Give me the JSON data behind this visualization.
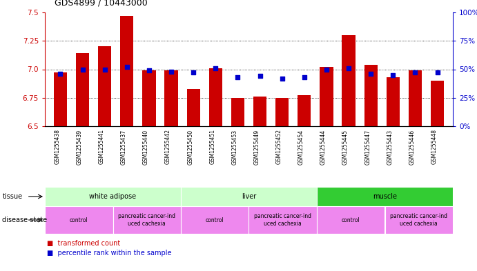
{
  "title": "GDS4899 / 10443000",
  "samples": [
    "GSM1255438",
    "GSM1255439",
    "GSM1255441",
    "GSM1255437",
    "GSM1255440",
    "GSM1255442",
    "GSM1255450",
    "GSM1255451",
    "GSM1255453",
    "GSM1255449",
    "GSM1255452",
    "GSM1255454",
    "GSM1255444",
    "GSM1255445",
    "GSM1255447",
    "GSM1255443",
    "GSM1255446",
    "GSM1255448"
  ],
  "transformed_count": [
    6.97,
    7.14,
    7.2,
    7.47,
    6.99,
    6.99,
    6.83,
    7.01,
    6.75,
    6.76,
    6.75,
    6.77,
    7.02,
    7.3,
    7.04,
    6.93,
    6.99,
    6.9
  ],
  "percentile_rank": [
    46,
    50,
    50,
    52,
    49,
    48,
    47,
    51,
    43,
    44,
    42,
    43,
    50,
    51,
    46,
    45,
    47,
    47
  ],
  "ylim_left": [
    6.5,
    7.5
  ],
  "ylim_right": [
    0,
    100
  ],
  "yticks_left": [
    6.5,
    6.75,
    7.0,
    7.25,
    7.5
  ],
  "yticks_right": [
    0,
    25,
    50,
    75,
    100
  ],
  "bar_color": "#cc0000",
  "dot_color": "#0000cc",
  "tissue_groups": [
    {
      "label": "white adipose",
      "start": 0,
      "end": 5,
      "color": "#aaffaa"
    },
    {
      "label": "liver",
      "start": 6,
      "end": 11,
      "color": "#aaffaa"
    },
    {
      "label": "muscle",
      "start": 12,
      "end": 17,
      "color": "#33cc33"
    }
  ],
  "disease_groups": [
    {
      "label": "control",
      "start": 0,
      "end": 2
    },
    {
      "label": "pancreatic cancer-ind\nuced cachexia",
      "start": 3,
      "end": 5
    },
    {
      "label": "control",
      "start": 6,
      "end": 8
    },
    {
      "label": "pancreatic cancer-ind\nuced cachexia",
      "start": 9,
      "end": 11
    },
    {
      "label": "control",
      "start": 12,
      "end": 14
    },
    {
      "label": "pancreatic cancer-ind\nuced cachexia",
      "start": 15,
      "end": 17
    }
  ],
  "tissue_light_color": "#ccffcc",
  "tissue_dark_color": "#33cc33",
  "disease_color": "#ee88ee",
  "xticklabel_bg": "#cccccc",
  "fig_width": 6.91,
  "fig_height": 3.93,
  "fig_dpi": 100
}
